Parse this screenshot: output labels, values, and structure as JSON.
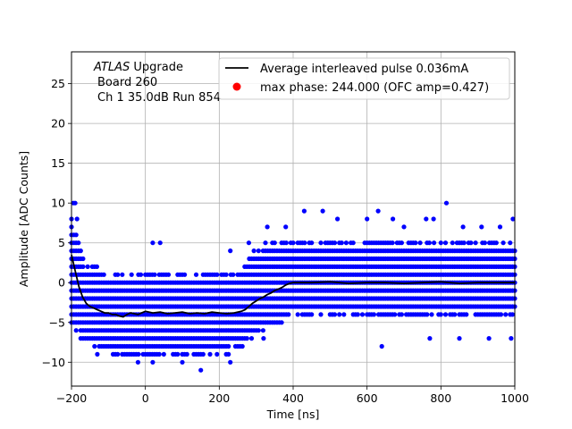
{
  "chart_data": {
    "type": "scatter",
    "xlabel": "Time [ns]",
    "ylabel": "Amplitude [ADC Counts]",
    "xlim": [
      -200,
      1000
    ],
    "ylim": [
      -13,
      29
    ],
    "xticks": [
      -200,
      0,
      200,
      400,
      600,
      800,
      1000
    ],
    "yticks": [
      -10,
      -5,
      0,
      5,
      10,
      15,
      20,
      25
    ],
    "xtick_labels": [
      "−200",
      "0",
      "200",
      "400",
      "600",
      "800",
      "1000"
    ],
    "ytick_labels": [
      "−10",
      "−5",
      "0",
      "5",
      "10",
      "15",
      "20",
      "25"
    ],
    "grid": true,
    "annotation": {
      "line1_italic": "ATLAS",
      "line1_rest": " Upgrade",
      "line2": "Board 260",
      "line3": "Ch 1 35.0dB  Run 854"
    },
    "legend": {
      "position": "top-right",
      "entries": [
        {
          "label": "Average interleaved pulse 0.036mA",
          "marker": "line",
          "color": "#000000"
        },
        {
          "label": "max phase: 244.000 (OFC amp=0.427)",
          "marker": "dot",
          "color": "#ff0000"
        }
      ]
    },
    "series": [
      {
        "name": "samples",
        "kind": "scatter",
        "color": "#0000ff",
        "x_step_ns": 6.25,
        "band_note": "dense band of integer ADC samples",
        "band_min_levels": [
          [
            -200,
            -6
          ],
          [
            -160,
            -7
          ],
          [
            -120,
            -8
          ],
          [
            -80,
            -9
          ],
          [
            -40,
            -9
          ],
          [
            0,
            -9
          ],
          [
            100,
            -9
          ],
          [
            200,
            -9
          ],
          [
            260,
            -8
          ],
          [
            300,
            -6
          ],
          [
            350,
            -5
          ],
          [
            400,
            -4
          ],
          [
            1000,
            -4
          ]
        ],
        "band_max_levels": [
          [
            -200,
            8
          ],
          [
            -160,
            2
          ],
          [
            -100,
            1
          ],
          [
            -50,
            1
          ],
          [
            0,
            1
          ],
          [
            100,
            1
          ],
          [
            200,
            1
          ],
          [
            260,
            1
          ],
          [
            300,
            4
          ],
          [
            350,
            5
          ],
          [
            400,
            5
          ],
          [
            1000,
            5
          ]
        ],
        "outliers": [
          {
            "x": -195,
            "y": 10
          },
          {
            "x": -190,
            "y": 10
          },
          {
            "x": -185,
            "y": 8
          },
          {
            "x": 20,
            "y": 5
          },
          {
            "x": 40,
            "y": 5
          },
          {
            "x": 230,
            "y": 4
          },
          {
            "x": 280,
            "y": 5
          },
          {
            "x": 330,
            "y": 7
          },
          {
            "x": 380,
            "y": 7
          },
          {
            "x": 430,
            "y": 9
          },
          {
            "x": 480,
            "y": 9
          },
          {
            "x": 520,
            "y": 8
          },
          {
            "x": 600,
            "y": 8
          },
          {
            "x": 630,
            "y": 9
          },
          {
            "x": 670,
            "y": 8
          },
          {
            "x": 700,
            "y": 7
          },
          {
            "x": 760,
            "y": 8
          },
          {
            "x": 780,
            "y": 8
          },
          {
            "x": 815,
            "y": 10
          },
          {
            "x": 860,
            "y": 7
          },
          {
            "x": 910,
            "y": 7
          },
          {
            "x": 960,
            "y": 7
          },
          {
            "x": 995,
            "y": 8
          },
          {
            "x": 150,
            "y": -11
          },
          {
            "x": 100,
            "y": -10
          },
          {
            "x": -20,
            "y": -10
          },
          {
            "x": 20,
            "y": -10
          },
          {
            "x": 230,
            "y": -10
          },
          {
            "x": 320,
            "y": -7
          },
          {
            "x": 640,
            "y": -8
          },
          {
            "x": 770,
            "y": -7
          },
          {
            "x": 850,
            "y": -7
          },
          {
            "x": 930,
            "y": -7
          },
          {
            "x": 990,
            "y": -7
          },
          {
            "x": -130,
            "y": -9
          }
        ]
      },
      {
        "name": "Average interleaved pulse 0.036mA",
        "kind": "line",
        "color": "#000000",
        "x": [
          -200,
          -190,
          -180,
          -170,
          -160,
          -150,
          -140,
          -130,
          -120,
          -110,
          -100,
          -90,
          -80,
          -70,
          -60,
          -50,
          -40,
          -30,
          -20,
          -10,
          0,
          20,
          40,
          60,
          80,
          100,
          120,
          140,
          160,
          180,
          200,
          220,
          240,
          260,
          270,
          280,
          290,
          300,
          310,
          320,
          330,
          340,
          350,
          360,
          370,
          380,
          390,
          400,
          450,
          500,
          550,
          600,
          650,
          700,
          750,
          800,
          850,
          900,
          950,
          1000
        ],
        "y": [
          3.5,
          1.5,
          -0.5,
          -1.8,
          -2.6,
          -3.0,
          -3.2,
          -3.4,
          -3.6,
          -3.8,
          -3.8,
          -4.0,
          -4.0,
          -4.2,
          -4.3,
          -4.0,
          -3.8,
          -3.9,
          -4.0,
          -3.8,
          -3.6,
          -3.8,
          -3.7,
          -3.9,
          -3.8,
          -3.7,
          -3.9,
          -3.8,
          -3.9,
          -3.7,
          -3.8,
          -3.9,
          -3.8,
          -3.6,
          -3.4,
          -3.0,
          -2.6,
          -2.3,
          -2.0,
          -1.8,
          -1.5,
          -1.3,
          -1.0,
          -0.8,
          -0.6,
          -0.3,
          -0.1,
          0.0,
          0.0,
          0.1,
          -0.1,
          0.0,
          0.0,
          -0.1,
          0.0,
          0.1,
          -0.1,
          0.0,
          0.0,
          0.0
        ]
      }
    ]
  }
}
